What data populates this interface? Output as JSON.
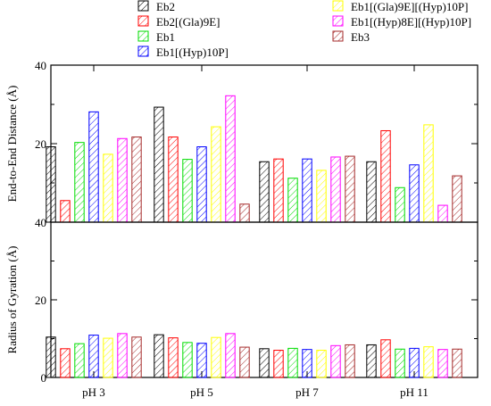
{
  "chart_data": [
    {
      "type": "bar",
      "panel": "top",
      "ylabel": "End-to-End Distance (Å)",
      "yticks": [
        "40",
        "20",
        "40"
      ],
      "categories": [
        "pH 3",
        "pH 5",
        "pH 7",
        "pH 11"
      ],
      "series": [
        {
          "name": "Eb2",
          "values": [
            19.2,
            29.3,
            15.4,
            15.4
          ]
        },
        {
          "name": "Eb2[(Gla)9E]",
          "values": [
            5.5,
            21.7,
            16.1,
            23.3
          ]
        },
        {
          "name": "Eb1",
          "values": [
            20.3,
            16.0,
            11.2,
            8.8
          ]
        },
        {
          "name": "Eb1[(Hyp)10P]",
          "values": [
            28.1,
            19.2,
            16.1,
            14.6
          ]
        },
        {
          "name": "Eb1[(Gla)9E][(Hyp)10P]",
          "values": [
            17.3,
            24.3,
            13.2,
            24.8
          ]
        },
        {
          "name": "Eb1[(Hyp)8E][(Hyp)10P]",
          "values": [
            21.3,
            32.2,
            16.6,
            4.3
          ]
        },
        {
          "name": "Eb3",
          "values": [
            21.7,
            4.6,
            16.8,
            11.8
          ]
        }
      ]
    },
    {
      "type": "bar",
      "panel": "bottom",
      "ylabel": "Radius of Gyration (Å)",
      "yticks": [
        "0",
        "20"
      ],
      "categories": [
        "pH 3",
        "pH 5",
        "pH 7",
        "pH 11"
      ],
      "series": [
        {
          "name": "Eb2",
          "values": [
            10.4,
            11.0,
            7.4,
            8.4
          ]
        },
        {
          "name": "Eb2[(Gla)9E]",
          "values": [
            7.4,
            10.2,
            7.0,
            9.7
          ]
        },
        {
          "name": "Eb1",
          "values": [
            8.7,
            9.0,
            7.5,
            7.3
          ]
        },
        {
          "name": "Eb1[(Hyp)10P]",
          "values": [
            10.9,
            8.8,
            7.2,
            7.5
          ]
        },
        {
          "name": "Eb1[(Gla)9E][(Hyp)10P]",
          "values": [
            10.1,
            10.3,
            7.0,
            7.9
          ]
        },
        {
          "name": "Eb1[(Hyp)8E][(Hyp)10P]",
          "values": [
            11.3,
            11.3,
            8.2,
            7.2
          ]
        },
        {
          "name": "Eb3",
          "values": [
            10.4,
            7.8,
            8.4,
            7.3
          ]
        }
      ]
    }
  ],
  "series_colors": [
    "#000000",
    "#ff0000",
    "#00dd00",
    "#0000ff",
    "#ffff00",
    "#ff00ff",
    "#a52a2a"
  ],
  "ylim": [
    0,
    40
  ]
}
